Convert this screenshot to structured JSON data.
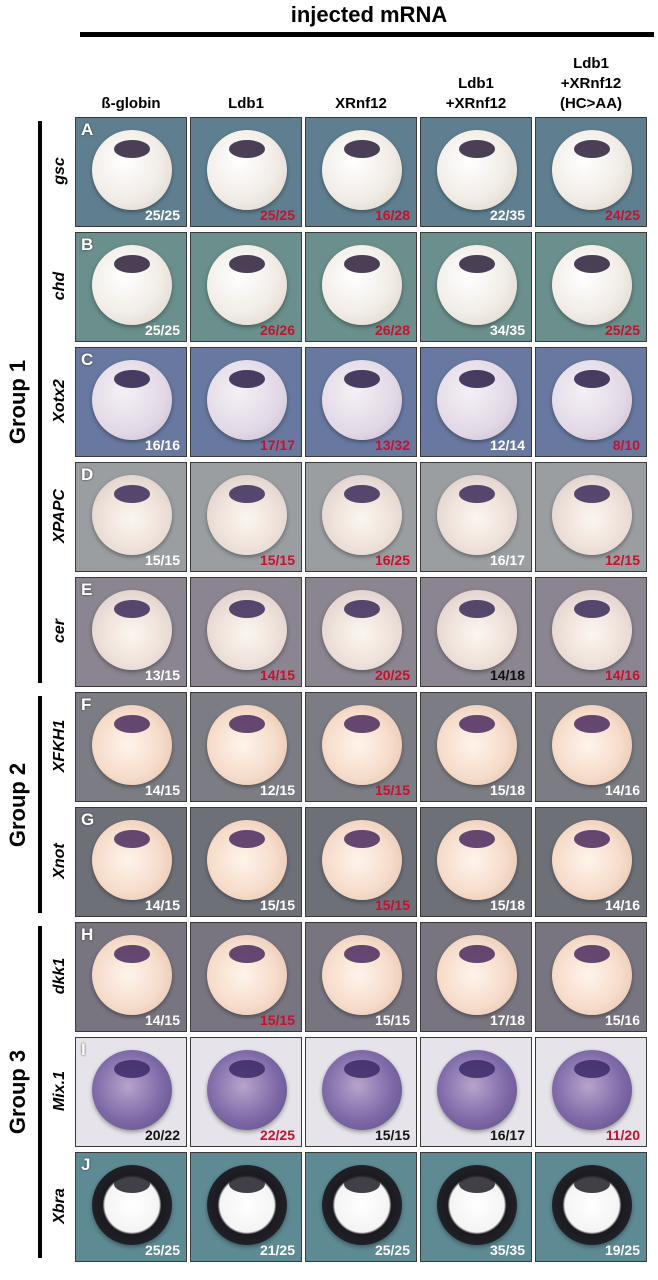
{
  "title": "injected mRNA",
  "columns": [
    "ß-globin",
    "Ldb1",
    "XRnf12",
    "Ldb1\n+XRnf12",
    "Ldb1\n+XRnf12\n(HC>AA)"
  ],
  "groups": [
    {
      "label": "Group 1",
      "rows": [
        0,
        1,
        2,
        3,
        4
      ]
    },
    {
      "label": "Group 2",
      "rows": [
        5,
        6
      ]
    },
    {
      "label": "Group 3",
      "rows": [
        7,
        8,
        9
      ]
    }
  ],
  "rows": [
    {
      "letter": "A",
      "gene": "gsc",
      "bg": "#5f7f90",
      "embryo": "light",
      "counts": [
        "25/25",
        "25/25",
        "16/28",
        "22/35",
        "24/25"
      ],
      "count_colors": [
        "#ffffff",
        "#c8102e",
        "#c8102e",
        "#ffffff",
        "#c8102e"
      ]
    },
    {
      "letter": "B",
      "gene": "chd",
      "bg": "#6a8f8c",
      "embryo": "light",
      "counts": [
        "25/25",
        "26/26",
        "26/28",
        "34/35",
        "25/25"
      ],
      "count_colors": [
        "#ffffff",
        "#c8102e",
        "#c8102e",
        "#ffffff",
        "#c8102e"
      ]
    },
    {
      "letter": "C",
      "gene": "Xotx2",
      "bg": "#6878a0",
      "embryo": "lavender",
      "counts": [
        "16/16",
        "17/17",
        "13/32",
        "12/14",
        "8/10"
      ],
      "count_colors": [
        "#ffffff",
        "#c8102e",
        "#c8102e",
        "#ffffff",
        "#c8102e"
      ]
    },
    {
      "letter": "D",
      "gene": "XPAPC",
      "bg": "#9a9ea0",
      "embryo": "ring",
      "counts": [
        "15/15",
        "15/15",
        "16/25",
        "16/17",
        "12/15"
      ],
      "count_colors": [
        "#ffffff",
        "#c8102e",
        "#c8102e",
        "#ffffff",
        "#c8102e"
      ]
    },
    {
      "letter": "E",
      "gene": "cer",
      "bg": "#8a8590",
      "embryo": "ring",
      "counts": [
        "13/15",
        "14/15",
        "20/25",
        "14/18",
        "14/16"
      ],
      "count_colors": [
        "#ffffff",
        "#c8102e",
        "#c8102e",
        "#111111",
        "#c8102e"
      ]
    },
    {
      "letter": "F",
      "gene": "XFKH1",
      "bg": "#7c7c84",
      "embryo": "peach",
      "counts": [
        "14/15",
        "12/15",
        "15/15",
        "15/18",
        "14/16"
      ],
      "count_colors": [
        "#ffffff",
        "#ffffff",
        "#c8102e",
        "#ffffff",
        "#ffffff"
      ]
    },
    {
      "letter": "G",
      "gene": "Xnot",
      "bg": "#6e7078",
      "embryo": "peach",
      "counts": [
        "14/15",
        "15/15",
        "15/15",
        "15/18",
        "14/16"
      ],
      "count_colors": [
        "#ffffff",
        "#ffffff",
        "#c8102e",
        "#ffffff",
        "#ffffff"
      ]
    },
    {
      "letter": "H",
      "gene": "dkk1",
      "bg": "#787480",
      "embryo": "peach",
      "counts": [
        "14/15",
        "15/15",
        "15/15",
        "17/18",
        "15/16"
      ],
      "count_colors": [
        "#ffffff",
        "#c8102e",
        "#ffffff",
        "#ffffff",
        "#ffffff"
      ]
    },
    {
      "letter": "I",
      "gene": "Mix.1",
      "bg": "#e6e4ea",
      "embryo": "purple",
      "counts": [
        "20/22",
        "22/25",
        "15/15",
        "16/17",
        "11/20"
      ],
      "count_colors": [
        "#111111",
        "#c8102e",
        "#111111",
        "#111111",
        "#c8102e"
      ]
    },
    {
      "letter": "J",
      "gene": "Xbra",
      "bg": "#5e8a94",
      "embryo": "bra",
      "counts": [
        "25/25",
        "21/25",
        "25/25",
        "35/35",
        "19/25"
      ],
      "count_colors": [
        "#ffffff",
        "#ffffff",
        "#ffffff",
        "#ffffff",
        "#ffffff"
      ]
    }
  ]
}
